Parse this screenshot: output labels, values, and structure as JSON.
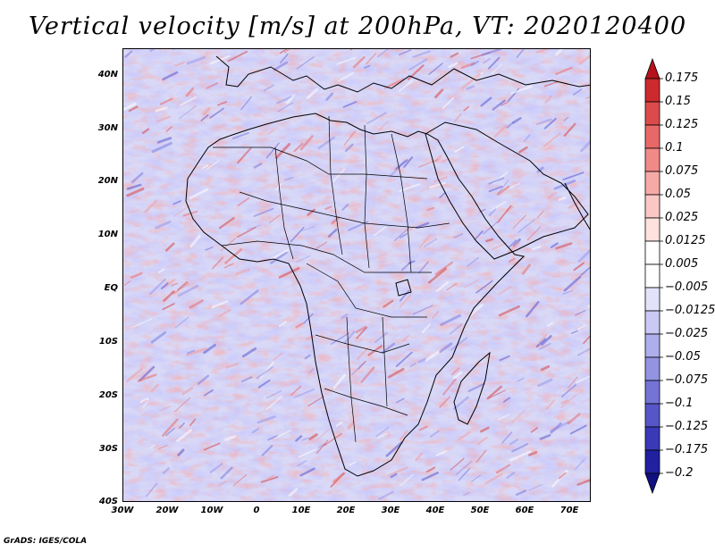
{
  "title": "Vertical velocity [m/s] at 200hPa, VT: 2020120400",
  "footer": "GrADS: IGES/COLA",
  "lat_labels": [
    "40N",
    "30N",
    "20N",
    "10N",
    "EQ",
    "10S",
    "20S",
    "30S",
    "40S"
  ],
  "lon_labels": [
    "30W",
    "20W",
    "10W",
    "0",
    "10E",
    "20E",
    "30E",
    "40E",
    "50E",
    "60E",
    "70E"
  ],
  "colorbar": {
    "levels": [
      "0.175",
      "0.15",
      "0.125",
      "0.1",
      "0.075",
      "0.05",
      "0.025",
      "0.0125",
      "0.005",
      "−0.005",
      "−0.0125",
      "−0.025",
      "−0.05",
      "−0.075",
      "−0.1",
      "−0.125",
      "−0.175",
      "−0.2"
    ],
    "colors": [
      "#b5121b",
      "#cc2a2f",
      "#dc4b4b",
      "#e86868",
      "#f08a88",
      "#f6aaa6",
      "#fac8c4",
      "#fde2de",
      "#ffffff",
      "#ffffff",
      "#e2e2fa",
      "#c9c9f3",
      "#aeaeec",
      "#9393e2",
      "#7474d6",
      "#5656c8",
      "#3a3ab8",
      "#2020a0",
      "#101080"
    ]
  },
  "map": {
    "extent": {
      "lon_min": -30,
      "lon_max": 75,
      "lat_min": -40,
      "lat_max": 45
    },
    "field": "vertical velocity at 200hPa",
    "units": "m/s",
    "valid_time": "2020120400"
  }
}
